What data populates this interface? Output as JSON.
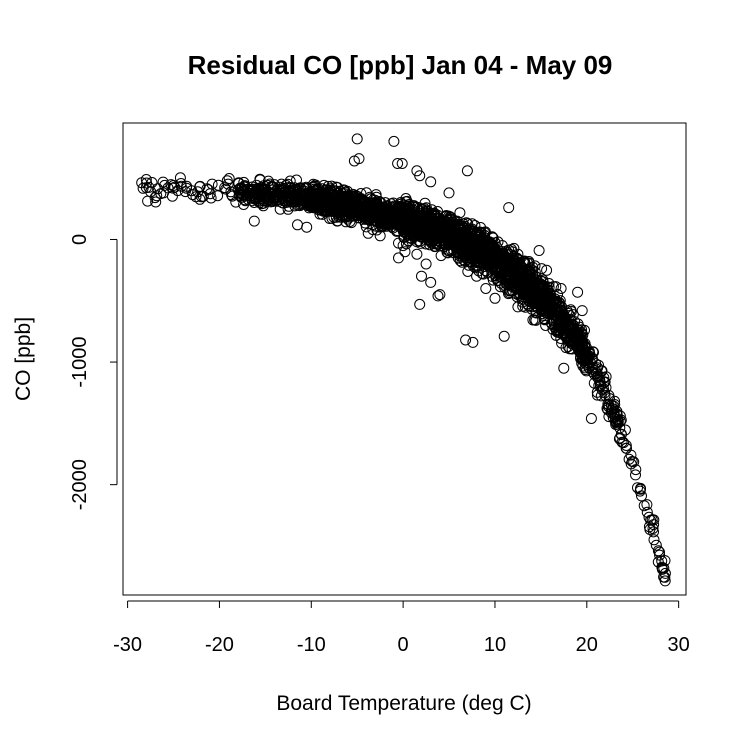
{
  "chart_data": {
    "type": "scatter",
    "title": "Residual CO [ppb] Jan 04 - May 09",
    "xlabel": "Board Temperature (deg C)",
    "ylabel": "CO [ppb]",
    "xlim": [
      -30.5,
      30.8
    ],
    "ylim": [
      -2900,
      950
    ],
    "xticks": [
      -30,
      -20,
      -10,
      0,
      10,
      20,
      30
    ],
    "xtick_labels": [
      "-30",
      "-20",
      "-10",
      "0",
      "10",
      "20",
      "30"
    ],
    "yticks": [
      0,
      -1000,
      -2000
    ],
    "ytick_labels": [
      "0",
      "-1000",
      "-2000"
    ],
    "grid": false,
    "marker": "open-circle",
    "colors": {
      "point": "#000000",
      "background": "#ffffff"
    },
    "trend": [
      [
        -28,
        400
      ],
      [
        -25,
        420
      ],
      [
        -20,
        400
      ],
      [
        -15,
        380
      ],
      [
        -10,
        330
      ],
      [
        -5,
        260
      ],
      [
        0,
        170
      ],
      [
        5,
        40
      ],
      [
        10,
        -150
      ],
      [
        15,
        -450
      ],
      [
        18,
        -730
      ],
      [
        20,
        -930
      ],
      [
        22,
        -1230
      ],
      [
        24,
        -1600
      ],
      [
        26,
        -2080
      ],
      [
        27,
        -2320
      ],
      [
        28,
        -2620
      ],
      [
        28.7,
        -2780
      ]
    ],
    "outliers": [
      [
        -5,
        820
      ],
      [
        -1,
        800
      ],
      [
        -4.8,
        660
      ],
      [
        -5.3,
        640
      ],
      [
        -0.6,
        620
      ],
      [
        -0.1,
        620
      ],
      [
        1.5,
        560
      ],
      [
        1.8,
        520
      ],
      [
        7,
        560
      ],
      [
        3,
        470
      ],
      [
        5,
        380
      ],
      [
        -3.5,
        300
      ],
      [
        -2,
        260
      ],
      [
        11.5,
        260
      ],
      [
        -16.2,
        150
      ],
      [
        -11.5,
        120
      ],
      [
        -10.5,
        100
      ],
      [
        -3.8,
        50
      ],
      [
        -2.5,
        30
      ],
      [
        -0.5,
        -30
      ],
      [
        0,
        -50
      ],
      [
        -0.5,
        -150
      ],
      [
        0.2,
        -100
      ],
      [
        1.5,
        -120
      ],
      [
        2,
        -300
      ],
      [
        2.5,
        -200
      ],
      [
        3,
        -350
      ],
      [
        4,
        -450
      ],
      [
        3.8,
        -460
      ],
      [
        1.8,
        -530
      ],
      [
        6.8,
        -820
      ],
      [
        7.6,
        -840
      ],
      [
        11,
        -790
      ],
      [
        8,
        -300
      ],
      [
        9,
        -400
      ],
      [
        10,
        -480
      ],
      [
        12.5,
        -550
      ],
      [
        14.5,
        -600
      ],
      [
        17.2,
        -400
      ],
      [
        19,
        -430
      ],
      [
        19.5,
        -580
      ],
      [
        17.5,
        -1050
      ],
      [
        14.8,
        -90
      ],
      [
        12.5,
        -120
      ],
      [
        20.5,
        -1460
      ],
      [
        10,
        -250
      ],
      [
        6,
        -150
      ],
      [
        8.5,
        -50
      ]
    ]
  }
}
